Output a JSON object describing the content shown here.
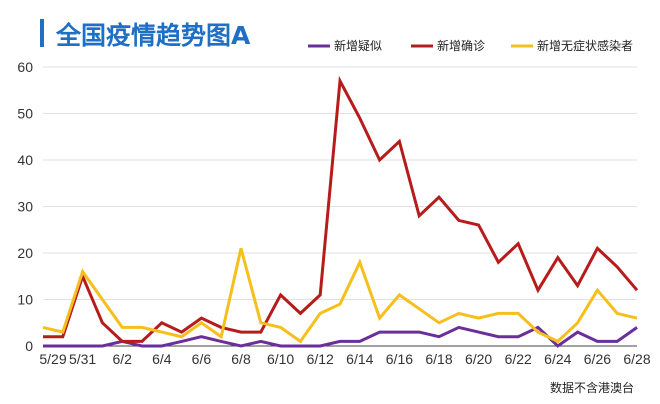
{
  "chart_data": {
    "type": "line",
    "title": "全国疫情趋势图A",
    "xlabel": "",
    "ylabel": "",
    "ylim": [
      0,
      60
    ],
    "yticks": [
      "0",
      "10",
      "20",
      "30",
      "40",
      "50",
      "60"
    ],
    "x": [
      "5/29",
      "5/30",
      "5/31",
      "6/1",
      "6/2",
      "6/3",
      "6/4",
      "6/5",
      "6/6",
      "6/7",
      "6/8",
      "6/9",
      "6/10",
      "6/11",
      "6/12",
      "6/13",
      "6/14",
      "6/15",
      "6/16",
      "6/17",
      "6/18",
      "6/19",
      "6/20",
      "6/21",
      "6/22",
      "6/23",
      "6/24",
      "6/25",
      "6/26",
      "6/27",
      "6/28"
    ],
    "xtick_labels": [
      "5/29",
      "5/31",
      "6/2",
      "6/4",
      "6/6",
      "6/8",
      "6/10",
      "6/12",
      "6/14",
      "6/16",
      "6/18",
      "6/20",
      "6/22",
      "6/24",
      "6/26",
      "6/28"
    ],
    "grid": "horizontal",
    "legend_position": "top",
    "series": [
      {
        "name": "新增疑似",
        "color": "#6a2f9a",
        "values": [
          0,
          0,
          0,
          0,
          1,
          0,
          0,
          1,
          2,
          1,
          0,
          1,
          0,
          0,
          0,
          1,
          1,
          3,
          3,
          3,
          2,
          4,
          3,
          2,
          2,
          4,
          0,
          3,
          1,
          1,
          4
        ]
      },
      {
        "name": "新增确诊",
        "color": "#b71c1c",
        "values": [
          2,
          2,
          15,
          5,
          1,
          1,
          5,
          3,
          6,
          4,
          3,
          3,
          11,
          7,
          11,
          57,
          49,
          40,
          44,
          28,
          32,
          27,
          26,
          18,
          22,
          12,
          19,
          13,
          21,
          17,
          12
        ]
      },
      {
        "name": "新增无症状感染者",
        "color": "#f5bf1d",
        "values": [
          4,
          3,
          16,
          10,
          4,
          4,
          3,
          2,
          5,
          2,
          21,
          5,
          4,
          1,
          7,
          9,
          18,
          6,
          11,
          8,
          5,
          7,
          6,
          7,
          7,
          3,
          1,
          5,
          12,
          7,
          6
        ]
      }
    ],
    "note": "数据不含港澳台"
  }
}
